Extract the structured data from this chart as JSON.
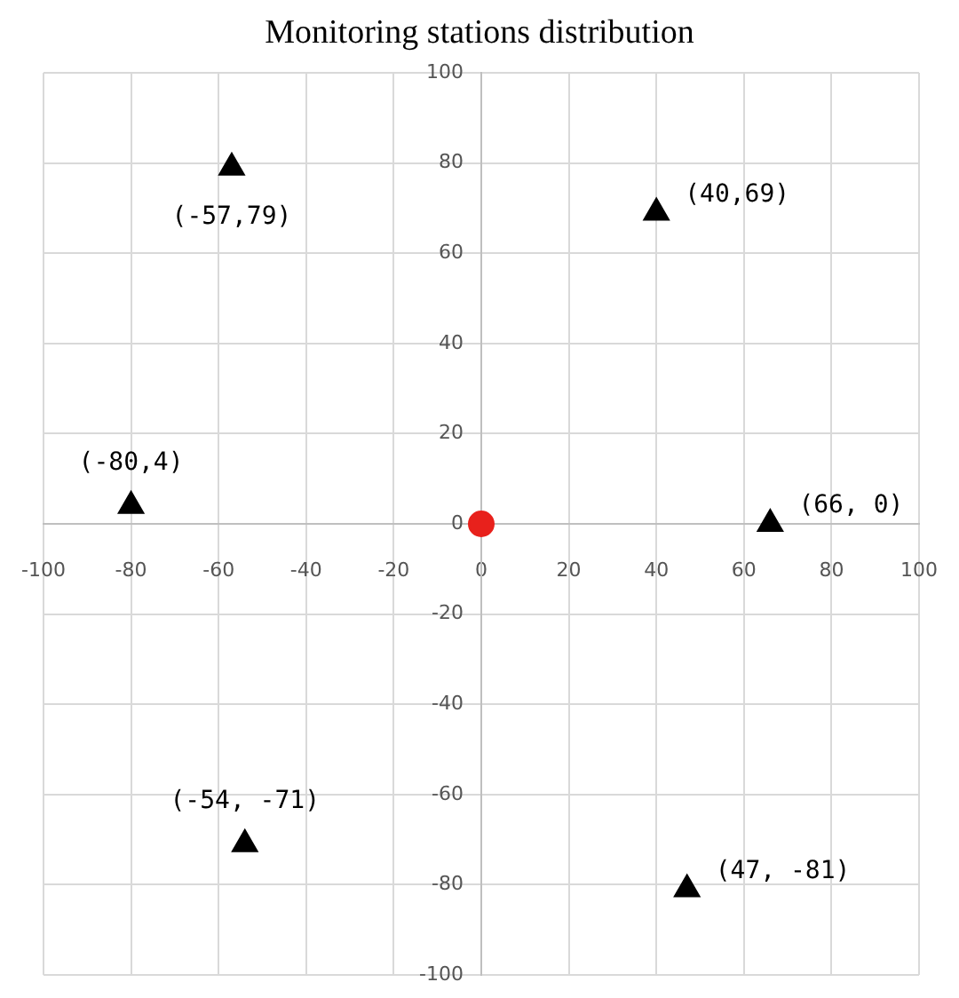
{
  "chart_data": {
    "type": "scatter",
    "title": "Monitoring stations distribution",
    "xlim": [
      -100,
      100
    ],
    "ylim": [
      -100,
      100
    ],
    "xticks": [
      -100,
      -80,
      -60,
      -40,
      -20,
      0,
      20,
      40,
      60,
      80,
      100
    ],
    "yticks": [
      -100,
      -80,
      -60,
      -40,
      -20,
      0,
      20,
      40,
      60,
      80,
      100
    ],
    "grid": true,
    "series": [
      {
        "color": "#000000",
        "marker": "triangle",
        "x": [
          -57,
          40,
          -80,
          66,
          -54,
          47
        ],
        "values": [
          79,
          69,
          4,
          0,
          -71,
          -81
        ]
      },
      {
        "color": "#e8211c",
        "marker": "circle",
        "x": [
          0
        ],
        "values": [
          0
        ]
      }
    ],
    "annotations": [
      {
        "text": "(-57,79)",
        "x": -57,
        "y": 79
      },
      {
        "text": "(40,69)",
        "x": 40,
        "y": 69
      },
      {
        "text": "(-80,4)",
        "x": -80,
        "y": 4
      },
      {
        "text": "(66, 0)",
        "x": 66,
        "y": 0
      },
      {
        "text": "(-54, -71)",
        "x": -54,
        "y": -71
      },
      {
        "text": "(47, -81)",
        "x": 47,
        "y": -81
      }
    ]
  }
}
